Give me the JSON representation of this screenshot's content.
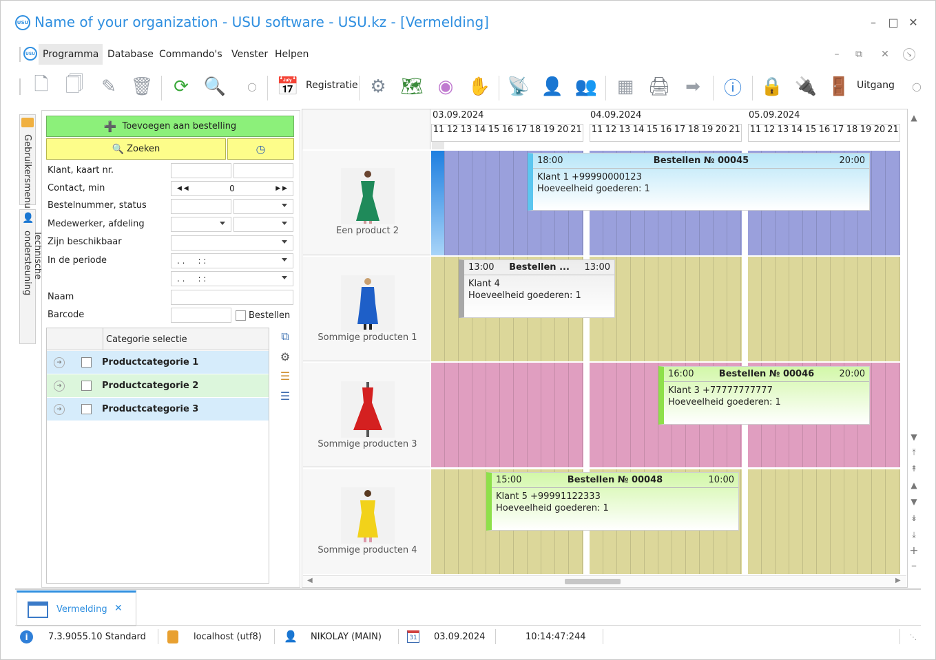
{
  "window": {
    "title": "Name of your organization - USU software - USU.kz - [Vermelding]",
    "logo": "usu",
    "controls": [
      "minimize-icon",
      "maximize-icon",
      "close-icon"
    ]
  },
  "menu": {
    "items": [
      "Programma",
      "Database",
      "Commando's",
      "Venster",
      "Helpen"
    ],
    "active": "Programma"
  },
  "toolbar": {
    "registratie_label": "Registratie",
    "uitgang_label": "Uitgang"
  },
  "left_tabs": {
    "user_menu": "Gebruikersmenu",
    "tech_support": "Technische ondersteuning"
  },
  "filters": {
    "add_order_label": "Toevoegen aan bestelling",
    "search_label": "Zoeken",
    "labels": {
      "client": "Klant, kaart nr.",
      "contact": "Contact, min",
      "order_number": "Bestelnummer, status",
      "employee": "Medewerker, afdeling",
      "available": "Zijn beschikbaar",
      "period": "In de periode",
      "name": "Naam",
      "barcode": "Barcode"
    },
    "contact_value": "0",
    "period_from": ". .     : :",
    "period_to": ". .     : :",
    "orders_checkbox": "Bestellen",
    "category_header": "Categorie selectie",
    "categories": [
      "Productcategorie 1",
      "Productcategorie 2",
      "Productcategorie 3"
    ]
  },
  "schedule": {
    "dates": [
      "03.09.2024",
      "04.09.2024",
      "05.09.2024"
    ],
    "hours": [
      "11",
      "12",
      "13",
      "14",
      "15",
      "16",
      "17",
      "18",
      "19",
      "20",
      "21"
    ],
    "rows": [
      {
        "product": "Een product 2",
        "color": "#9aa0dc"
      },
      {
        "product": "Sommige producten 1",
        "color": "#dcd79a"
      },
      {
        "product": "Sommige producten 3",
        "color": "#e09ec0"
      },
      {
        "product": "Sommige producten 4",
        "color": "#dcd79a"
      }
    ],
    "orders": [
      {
        "start": "18:00",
        "title": "Bestellen № 00045",
        "end": "20:00",
        "client": "Klant 1 +99990000123",
        "qty": "Hoeveelheid goederen: 1"
      },
      {
        "start": "13:00",
        "title": "Bestellen ...",
        "end": "13:00",
        "client": "Klant 4",
        "qty": "Hoeveelheid goederen: 1"
      },
      {
        "start": "16:00",
        "title": "Bestellen № 00046",
        "end": "20:00",
        "client": "Klant 3 +77777777777",
        "qty": "Hoeveelheid goederen: 1"
      },
      {
        "start": "15:00",
        "title": "Bestellen № 00048",
        "end": "10:00",
        "client": "Klant 5 +99991122333",
        "qty": "Hoeveelheid goederen: 1"
      }
    ]
  },
  "doc_tab": {
    "label": "Vermelding"
  },
  "status": {
    "version": "7.3.9055.10 Standard",
    "db": "localhost (utf8)",
    "user": "NIKOLAY (MAIN)",
    "date": "03.09.2024",
    "time": "10:14:47:244",
    "calendar_day": "31"
  }
}
